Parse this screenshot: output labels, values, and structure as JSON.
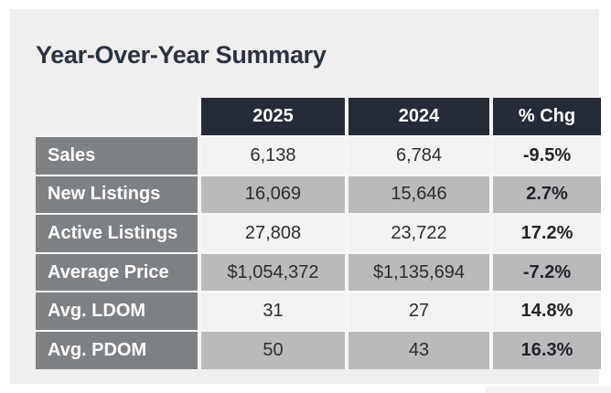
{
  "title": "Year-Over-Year Summary",
  "table": {
    "columns": [
      "",
      "2025",
      "2024",
      "% Chg"
    ],
    "rows": [
      {
        "label": "Sales",
        "y2025": "6,138",
        "y2024": "6,784",
        "chg": "-9.5%"
      },
      {
        "label": "New Listings",
        "y2025": "16,069",
        "y2024": "15,646",
        "chg": "2.7%"
      },
      {
        "label": "Active Listings",
        "y2025": "27,808",
        "y2024": "23,722",
        "chg": "17.2%"
      },
      {
        "label": "Average Price",
        "y2025": "$1,054,372",
        "y2024": "$1,135,694",
        "chg": "-7.2%"
      },
      {
        "label": "Avg. LDOM",
        "y2025": "31",
        "y2024": "27",
        "chg": "14.8%"
      },
      {
        "label": "Avg. PDOM",
        "y2025": "50",
        "y2024": "43",
        "chg": "16.3%"
      }
    ]
  },
  "chart_data": {
    "type": "table",
    "title": "Year-Over-Year Summary",
    "columns": [
      "",
      "2025",
      "2024",
      "% Chg"
    ],
    "rows": [
      [
        "Sales",
        "6,138",
        "6,784",
        "-9.5%"
      ],
      [
        "New Listings",
        "16,069",
        "15,646",
        "2.7%"
      ],
      [
        "Active Listings",
        "27,808",
        "23,722",
        "17.2%"
      ],
      [
        "Average Price",
        "$1,054,372",
        "$1,135,694",
        "-7.2%"
      ],
      [
        "Avg. LDOM",
        "31",
        "27",
        "14.8%"
      ],
      [
        "Avg. PDOM",
        "50",
        "43",
        "16.3%"
      ]
    ]
  },
  "colors": {
    "panel-bg": "#f0efef",
    "header-bg": "#262b38",
    "label-bg": "#7e8184",
    "row-light": "#f3f2f2",
    "row-gray": "#b9babc",
    "title-color": "#2b3240",
    "value-color": "#2d2d2e"
  }
}
